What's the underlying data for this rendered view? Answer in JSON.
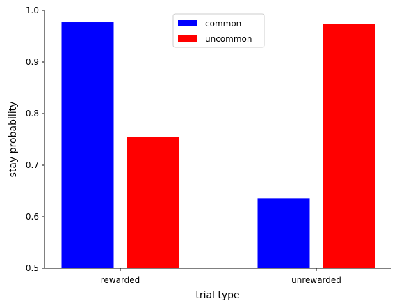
{
  "chart_data": {
    "type": "bar",
    "categories": [
      "rewarded",
      "unrewarded"
    ],
    "series": [
      {
        "name": "common",
        "color": "#0000ff",
        "values": [
          0.977,
          0.636
        ]
      },
      {
        "name": "uncommon",
        "color": "#ff0000",
        "values": [
          0.755,
          0.973
        ]
      }
    ],
    "xlabel": "trial type",
    "ylabel": "stay probability",
    "ylim": [
      0.5,
      1.0
    ],
    "yticks": [
      "0.5",
      "0.6",
      "0.7",
      "0.8",
      "0.9",
      "1.0"
    ],
    "grid": false,
    "legend_position": "top-center"
  }
}
